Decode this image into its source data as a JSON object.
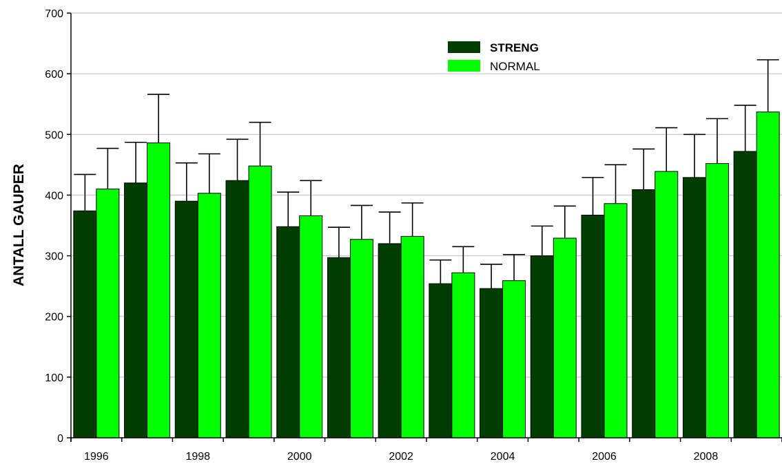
{
  "chart_data": {
    "type": "bar",
    "title": "",
    "xlabel": "",
    "ylabel": "ANTALL GAUPER",
    "ylim": [
      0,
      700
    ],
    "yticks": [
      "0",
      "100",
      "200",
      "300",
      "400",
      "500",
      "600",
      "700"
    ],
    "xtick_labels": [
      "1996",
      "1998",
      "2000",
      "2002",
      "2004",
      "2006",
      "2008"
    ],
    "grid": true,
    "legend_position": "top-center",
    "categories": [
      "1996",
      "1997",
      "1998",
      "1999",
      "2000",
      "2001",
      "2002",
      "2003",
      "2004",
      "2005",
      "2006",
      "2007",
      "2008",
      "2009"
    ],
    "series": [
      {
        "name": "STRENG",
        "color": "#003d00",
        "legend_bold": true,
        "values": [
          374,
          420,
          390,
          424,
          348,
          297,
          320,
          254,
          246,
          300,
          367,
          409,
          429,
          472
        ],
        "error_upper": [
          434,
          487,
          453,
          492,
          405,
          347,
          372,
          293,
          286,
          349,
          429,
          476,
          500,
          548
        ]
      },
      {
        "name": "NORMAL",
        "color": "#00ff00",
        "legend_bold": false,
        "values": [
          410,
          486,
          403,
          448,
          366,
          327,
          332,
          272,
          259,
          329,
          386,
          439,
          452,
          537
        ],
        "error_upper": [
          477,
          566,
          468,
          520,
          424,
          383,
          387,
          315,
          302,
          382,
          450,
          511,
          526,
          623
        ]
      }
    ]
  }
}
